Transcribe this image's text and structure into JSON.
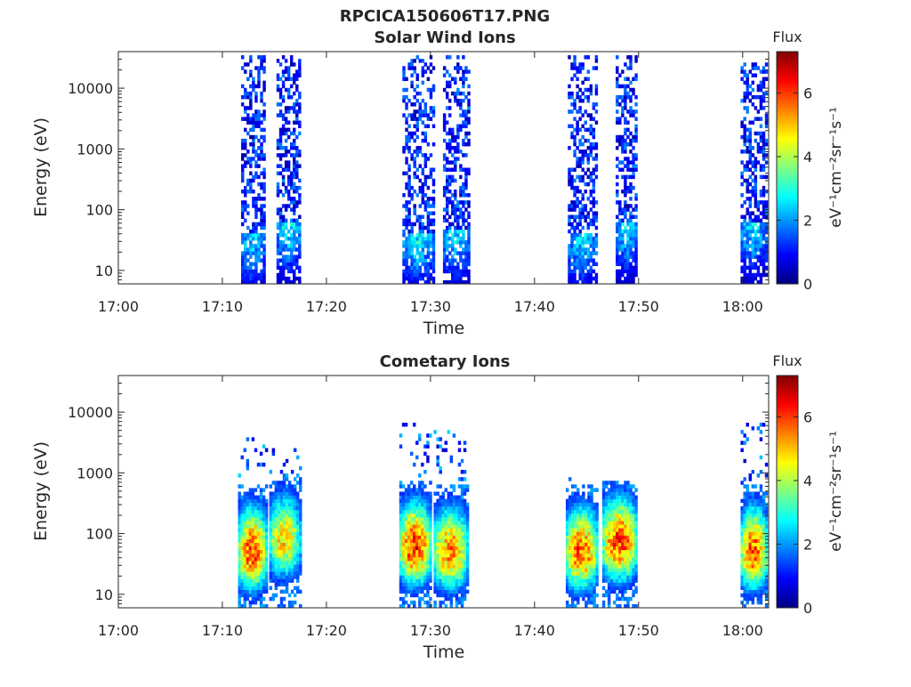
{
  "figure": {
    "title": "RPCICA150606T17.PNG"
  },
  "colormap": {
    "name": "jet",
    "stops": [
      "#00007f",
      "#0000ff",
      "#007fff",
      "#00ffff",
      "#7fff7f",
      "#ffff00",
      "#ff7f00",
      "#ff0000",
      "#7f0000"
    ]
  },
  "chart_data": [
    {
      "type": "heatmap",
      "title": "Solar Wind Ions",
      "xlabel": "Time",
      "ylabel": "Energy (eV)",
      "x_ticks": [
        "17:00",
        "17:10",
        "17:20",
        "17:30",
        "17:40",
        "17:50",
        "18:00"
      ],
      "xlim": [
        "17:00",
        "18:02.5"
      ],
      "y_scale": "log",
      "y_ticks": [
        "10",
        "100",
        "1000",
        "10000"
      ],
      "ylim": [
        6,
        40000
      ],
      "colorbar": {
        "title": "Flux",
        "label": "eV⁻¹cm⁻²sr⁻¹s⁻¹",
        "ticks": [
          "0",
          "2",
          "4",
          "6"
        ],
        "range": [
          0,
          7.3
        ]
      },
      "bursts": [
        {
          "start": "17:11.8",
          "end": "17:14.0",
          "peak_energy_eV": 40,
          "peak_value": 3.0,
          "max_energy_eV": 35000
        },
        {
          "start": "17:15.2",
          "end": "17:17.4",
          "peak_energy_eV": 60,
          "peak_value": 3.2,
          "max_energy_eV": 35000
        },
        {
          "start": "17:27.3",
          "end": "17:30.2",
          "peak_energy_eV": 40,
          "peak_value": 3.1,
          "max_energy_eV": 35000
        },
        {
          "start": "17:31.2",
          "end": "17:33.6",
          "peak_energy_eV": 50,
          "peak_value": 3.1,
          "max_energy_eV": 35000
        },
        {
          "start": "17:43.2",
          "end": "17:46.0",
          "peak_energy_eV": 40,
          "peak_value": 3.0,
          "max_energy_eV": 35000
        },
        {
          "start": "17:47.8",
          "end": "17:49.8",
          "peak_energy_eV": 60,
          "peak_value": 3.0,
          "max_energy_eV": 35000
        },
        {
          "start": "17:59.8",
          "end": "18:02.2",
          "peak_energy_eV": 60,
          "peak_value": 3.0,
          "max_energy_eV": 25000
        }
      ]
    },
    {
      "type": "heatmap",
      "title": "Cometary Ions",
      "xlabel": "Time",
      "ylabel": "Energy (eV)",
      "x_ticks": [
        "17:00",
        "17:10",
        "17:20",
        "17:30",
        "17:40",
        "17:50",
        "18:00"
      ],
      "xlim": [
        "17:00",
        "18:02.5"
      ],
      "y_scale": "log",
      "y_ticks": [
        "10",
        "100",
        "1000",
        "10000"
      ],
      "ylim": [
        6,
        40000
      ],
      "colorbar": {
        "title": "Flux",
        "label": "eV⁻¹cm⁻²sr⁻¹s⁻¹",
        "ticks": [
          "0",
          "2",
          "4",
          "6"
        ],
        "range": [
          0,
          7.3
        ]
      },
      "bursts": [
        {
          "start": "17:11.5",
          "end": "17:14.2",
          "peak_energy_eV": 50,
          "peak_value": 6.2,
          "max_energy_eV": 3800
        },
        {
          "start": "17:14.5",
          "end": "17:17.4",
          "peak_energy_eV": 80,
          "peak_value": 5.0,
          "max_energy_eV": 2700
        },
        {
          "start": "17:27.0",
          "end": "17:30.0",
          "peak_energy_eV": 60,
          "peak_value": 6.3,
          "max_energy_eV": 7000
        },
        {
          "start": "17:30.3",
          "end": "17:33.5",
          "peak_energy_eV": 50,
          "peak_value": 5.6,
          "max_energy_eV": 6500
        },
        {
          "start": "17:43.0",
          "end": "17:46.0",
          "peak_energy_eV": 50,
          "peak_value": 6.0,
          "max_energy_eV": 1200
        },
        {
          "start": "17:46.5",
          "end": "17:49.8",
          "peak_energy_eV": 70,
          "peak_value": 6.2,
          "max_energy_eV": 700
        },
        {
          "start": "17:59.8",
          "end": "18:02.3",
          "peak_energy_eV": 50,
          "peak_value": 6.0,
          "max_energy_eV": 6500
        }
      ]
    }
  ]
}
